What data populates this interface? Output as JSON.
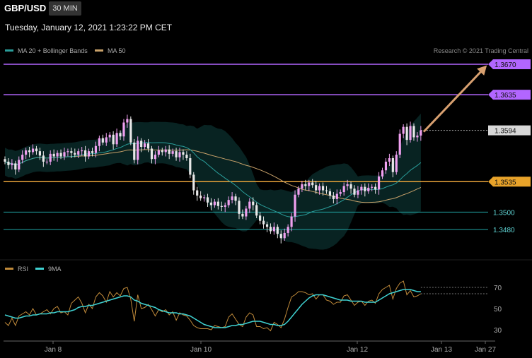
{
  "header": {
    "symbol": "GBP/USD",
    "timeframe": "30 MIN",
    "datetime": "Tuesday, January 12, 2021 1:23:22 PM CET"
  },
  "legend": {
    "ma20": "MA 20 + Bollinger Bands",
    "ma50": "MA 50",
    "credit": "Research © 2021 Trading Central"
  },
  "rsi_legend": {
    "rsi": "RSI",
    "ma9": "9MA"
  },
  "colors": {
    "ma20": "#2a9d9a",
    "ma50": "#c9a26a",
    "bull": "#f0a0f0",
    "bear": "#e8e8e8",
    "resistance": "#b266ff",
    "pivot": "#e8a33a",
    "support": "#21a6a6",
    "arrow": "#d8a070",
    "rsi": "#c08a3a",
    "rsi_ma": "#3fd2d2"
  },
  "chart_data": [
    {
      "type": "candlestick",
      "title": "GBP/USD",
      "x_ticks": [
        "Jan 8",
        "Jan 10",
        "Jan 12",
        "Jan 13",
        "Jan 27"
      ],
      "levels": [
        {
          "label": "1.3670",
          "value": 1.367,
          "kind": "resistance"
        },
        {
          "label": "1.3635",
          "value": 1.3635,
          "kind": "resistance"
        },
        {
          "label": "1.3594",
          "value": 1.3594,
          "kind": "current"
        },
        {
          "label": "1.3535",
          "value": 1.3535,
          "kind": "pivot"
        },
        {
          "label": "1.3500",
          "value": 1.35,
          "kind": "support"
        },
        {
          "label": "1.3480",
          "value": 1.348,
          "kind": "support"
        }
      ],
      "ohlc_close": [
        1.3558,
        1.3554,
        1.3556,
        1.3549,
        1.356,
        1.3566,
        1.3571,
        1.3569,
        1.3573,
        1.357,
        1.3565,
        1.3558,
        1.3558,
        1.3567,
        1.3564,
        1.3568,
        1.3564,
        1.3569,
        1.357,
        1.3568,
        1.3566,
        1.357,
        1.3571,
        1.3564,
        1.357,
        1.3568,
        1.3576,
        1.3585,
        1.358,
        1.3586,
        1.3589,
        1.3578,
        1.3591,
        1.3587,
        1.3603,
        1.3607,
        1.358,
        1.356,
        1.3582,
        1.3575,
        1.3579,
        1.3573,
        1.3561,
        1.3566,
        1.3571,
        1.3569,
        1.3572,
        1.3567,
        1.357,
        1.3563,
        1.3569,
        1.3566,
        1.3562,
        1.3543,
        1.3525,
        1.3519,
        1.3516,
        1.3517,
        1.3511,
        1.3508,
        1.3512,
        1.3507,
        1.3506,
        1.3508,
        1.3514,
        1.3518,
        1.3513,
        1.3498,
        1.3495,
        1.3504,
        1.3512,
        1.3508,
        1.3496,
        1.349,
        1.3486,
        1.3483,
        1.3478,
        1.3483,
        1.3475,
        1.347,
        1.3476,
        1.3483,
        1.3495,
        1.352,
        1.3527,
        1.3532,
        1.353,
        1.3534,
        1.3531,
        1.3525,
        1.353,
        1.3525,
        1.3524,
        1.3519,
        1.3515,
        1.3521,
        1.3523,
        1.353,
        1.3532,
        1.3527,
        1.352,
        1.3525,
        1.3529,
        1.3524,
        1.3528,
        1.3529,
        1.3526,
        1.3541,
        1.3548,
        1.3558,
        1.3562,
        1.3546,
        1.3566,
        1.359,
        1.3598,
        1.3583,
        1.3599,
        1.3586,
        1.3588,
        1.3594
      ]
    },
    {
      "type": "line",
      "title": "RSI",
      "y_ticks": [
        70,
        50,
        30
      ],
      "series": [
        {
          "name": "RSI",
          "values": [
            37,
            34,
            41,
            34,
            43,
            45,
            47,
            44,
            50,
            44,
            45,
            47,
            49,
            45,
            50,
            52,
            46,
            47,
            44,
            55,
            58,
            61,
            55,
            46,
            54,
            50,
            61,
            65,
            62,
            56,
            66,
            61,
            65,
            62,
            69,
            70,
            59,
            38,
            63,
            50,
            51,
            54,
            49,
            43,
            49,
            47,
            49,
            44,
            47,
            39,
            46,
            44,
            43,
            39,
            34,
            32,
            31,
            31,
            31,
            30,
            34,
            33,
            32,
            33,
            42,
            45,
            40,
            35,
            33,
            42,
            46,
            44,
            33,
            33,
            31,
            32,
            29,
            37,
            35,
            32,
            40,
            51,
            61,
            63,
            66,
            66,
            65,
            63,
            64,
            59,
            63,
            63,
            58,
            57,
            54,
            56,
            56,
            62,
            63,
            58,
            53,
            56,
            57,
            53,
            57,
            58,
            55,
            64,
            68,
            70,
            72,
            59,
            69,
            74,
            76,
            63,
            67,
            61,
            62,
            64
          ]
        },
        {
          "name": "9MA",
          "values": [
            44,
            43,
            42,
            41,
            41,
            42,
            43,
            43,
            44,
            44,
            45,
            45,
            45,
            46,
            46,
            47,
            47,
            47,
            47,
            48,
            49,
            51,
            52,
            52,
            53,
            53,
            54,
            55,
            56,
            57,
            58,
            59,
            60,
            61,
            62,
            62,
            61,
            58,
            57,
            55,
            54,
            53,
            52,
            51,
            49,
            48,
            47,
            46,
            46,
            46,
            45,
            45,
            44,
            43,
            41,
            39,
            37,
            35,
            34,
            33,
            32,
            32,
            32,
            32,
            33,
            34,
            34,
            35,
            35,
            36,
            37,
            38,
            38,
            38,
            37,
            36,
            35,
            35,
            34,
            34,
            35,
            38,
            42,
            46,
            50,
            54,
            57,
            60,
            62,
            63,
            63,
            63,
            62,
            61,
            60,
            59,
            58,
            58,
            58,
            57,
            57,
            57,
            57,
            56,
            56,
            56,
            56,
            58,
            60,
            62,
            64,
            65,
            66,
            67,
            68,
            68,
            68,
            67,
            66,
            66
          ]
        }
      ]
    }
  ]
}
